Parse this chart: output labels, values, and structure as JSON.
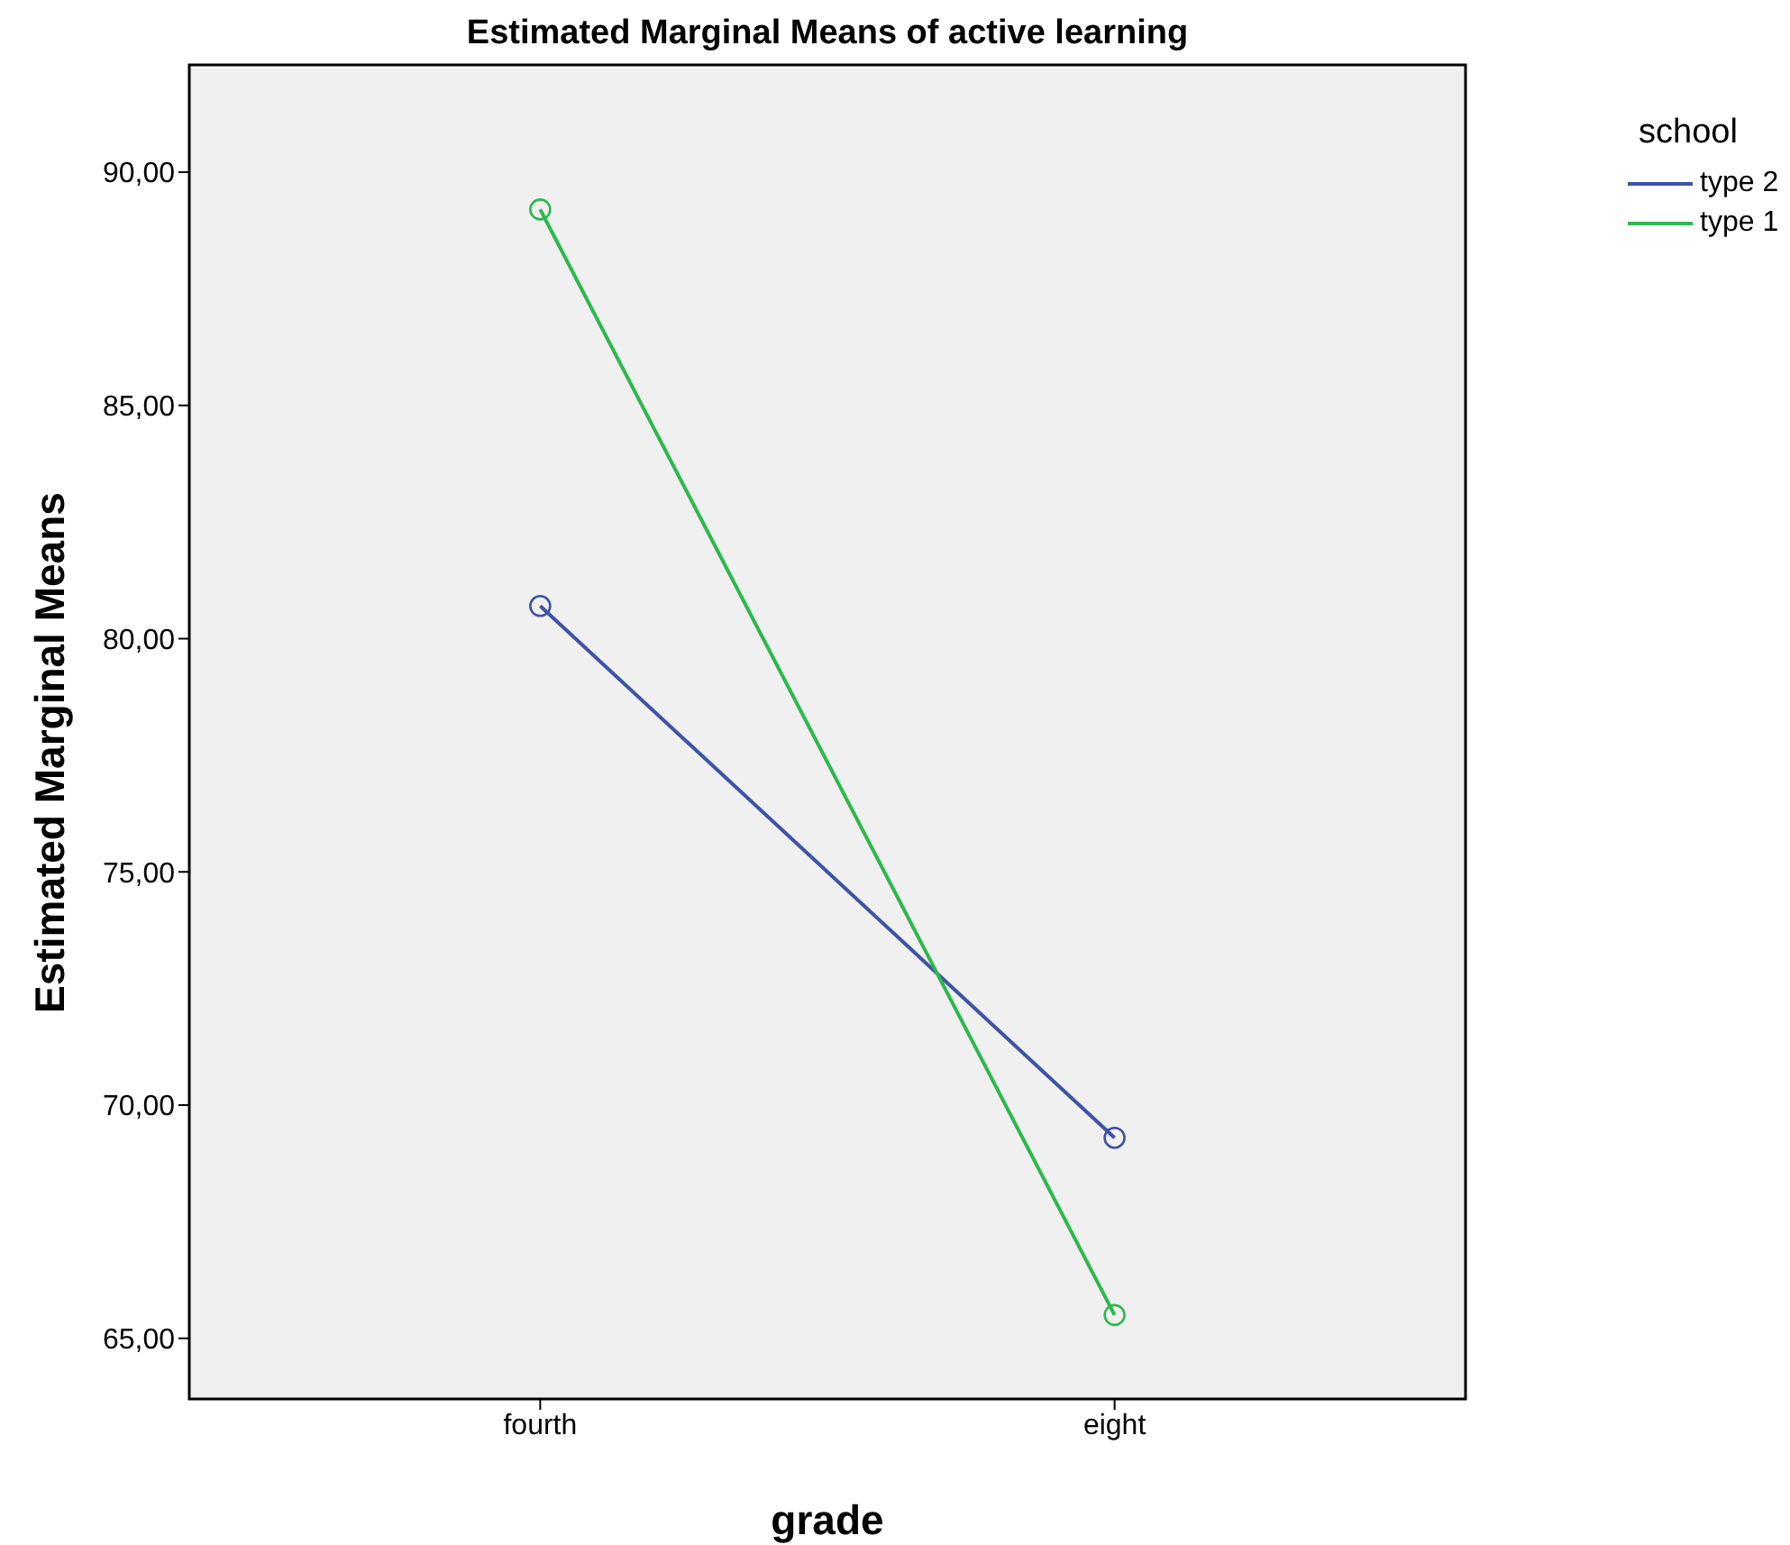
{
  "chart_data": {
    "type": "line",
    "title": "Estimated Marginal Means of active learning",
    "xlabel": "grade",
    "ylabel": "Estimated Marginal Means",
    "legend_title": "school",
    "categories": [
      "fourth",
      "eight"
    ],
    "series": [
      {
        "name": "type 2",
        "color": "#3e53a4",
        "values": [
          80.7,
          69.3
        ]
      },
      {
        "name": "type 1",
        "color": "#2db84d",
        "values": [
          89.2,
          65.5
        ]
      }
    ],
    "ylim": [
      63.7,
      92.3
    ],
    "yticks": [
      {
        "value": 65,
        "label": "65,00"
      },
      {
        "value": 70,
        "label": "70,00"
      },
      {
        "value": 75,
        "label": "75,00"
      },
      {
        "value": 80,
        "label": "80,00"
      },
      {
        "value": 85,
        "label": "85,00"
      },
      {
        "value": 90,
        "label": "90,00"
      }
    ],
    "grid": false,
    "legend": "top right",
    "marker": "circle",
    "line_style": "solid"
  }
}
